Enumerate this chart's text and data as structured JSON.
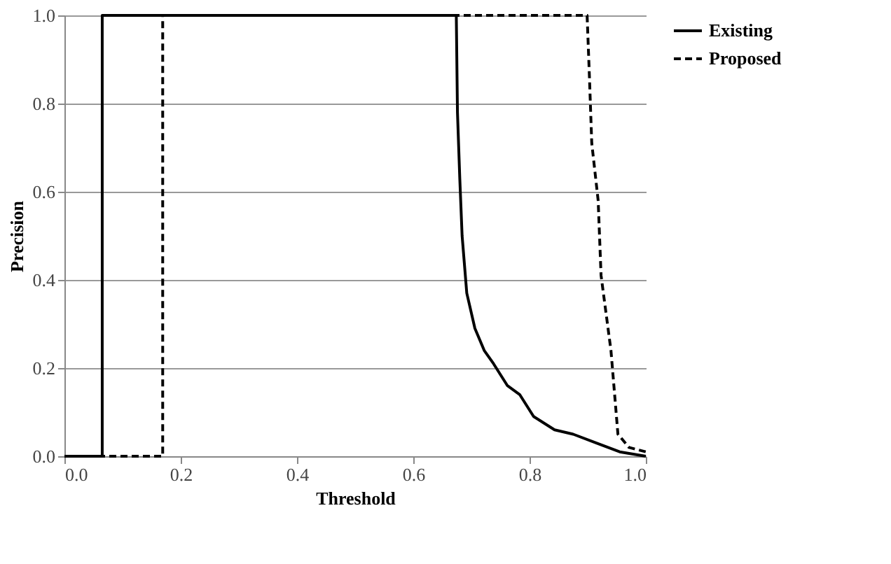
{
  "chart_data": {
    "type": "line",
    "xlabel": "Threshold",
    "ylabel": "Precision",
    "xlim": [
      0,
      1
    ],
    "xticks": [
      {
        "value": 0,
        "label": "0.0"
      },
      0.2,
      0.4,
      0.6,
      0.8,
      {
        "value": 1,
        "label": "1.0"
      }
    ],
    "ylim": [
      0,
      1
    ],
    "yticks": [
      {
        "value": 0,
        "label": "0.0"
      },
      0.2,
      0.4,
      0.6,
      0.8,
      {
        "value": 1,
        "label": "1.0"
      }
    ],
    "grid": "y",
    "legend": "right",
    "marker": "none",
    "series": [
      {
        "name": "Existing",
        "color": "#000000",
        "line_style": "solid",
        "x": [
          0,
          0.065,
          0.065,
          0.674,
          0.676,
          0.68,
          0.684,
          0.692,
          0.706,
          0.722,
          0.738,
          0.762,
          0.783,
          0.807,
          0.843,
          0.875,
          0.915,
          0.955,
          1.0
        ],
        "values": [
          0,
          0,
          1,
          1,
          0.78,
          0.63,
          0.5,
          0.37,
          0.29,
          0.24,
          0.21,
          0.16,
          0.14,
          0.09,
          0.06,
          0.05,
          0.03,
          0.01,
          0
        ]
      },
      {
        "name": "Proposed",
        "color": "#000000",
        "line_style": "dashed",
        "x": [
          0,
          0.169,
          0.169,
          0.899,
          0.903,
          0.907,
          0.918,
          0.923,
          0.94,
          0.952,
          0.971,
          1.0
        ],
        "values": [
          0,
          0,
          1,
          1,
          0.86,
          0.71,
          0.58,
          0.41,
          0.24,
          0.05,
          0.02,
          0.01
        ]
      }
    ]
  }
}
